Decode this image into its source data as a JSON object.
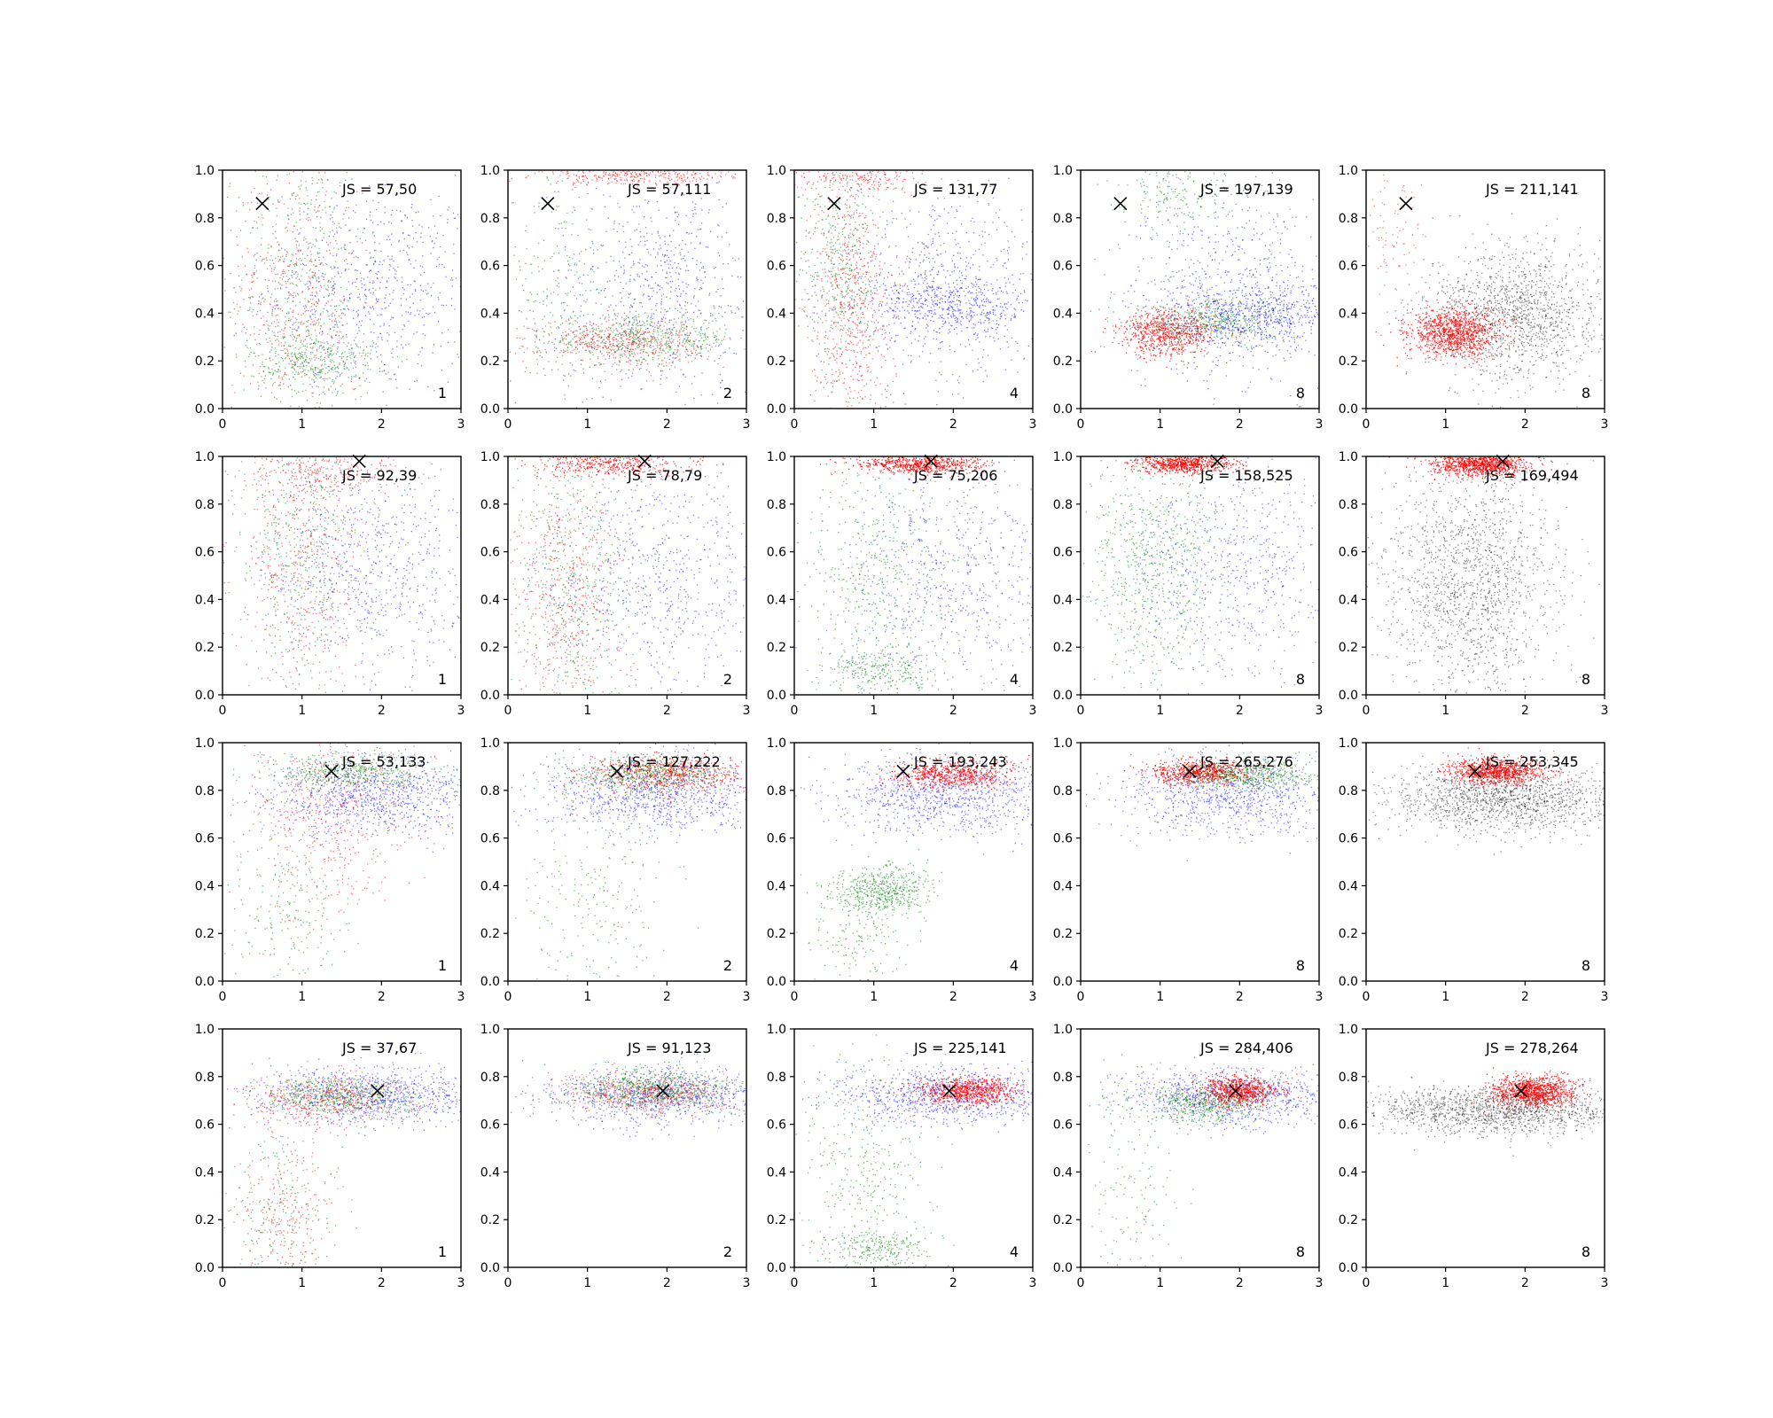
{
  "colors": {
    "background": "#ffffff",
    "series_a": "#0000ff",
    "series_b": "#008000",
    "series_c": "#ff0000",
    "series_other": "#000000",
    "marker": "#000000"
  },
  "chart_data": {
    "type": "scatter",
    "layout": "grid of small multiples, 4 rows x 5 columns",
    "xlim": [
      0,
      3
    ],
    "ylim": [
      0,
      1
    ],
    "xticks": [
      "0",
      "1",
      "2",
      "3"
    ],
    "yticks": [
      "0.0",
      "0.2",
      "0.4",
      "0.6",
      "0.8",
      "1.0"
    ],
    "grid": false,
    "marker_symbol": "x",
    "panels": [
      {
        "row": 1,
        "col": 1,
        "js_text": "JS = 57,50",
        "step": "1",
        "marker": [
          0.5,
          0.86
        ],
        "colors": [
          "blue",
          "green",
          "red"
        ]
      },
      {
        "row": 1,
        "col": 2,
        "js_text": "JS = 57,111",
        "step": "2",
        "marker": [
          0.5,
          0.86
        ],
        "colors": [
          "blue",
          "green",
          "red"
        ]
      },
      {
        "row": 1,
        "col": 3,
        "js_text": "JS = 131,77",
        "step": "4",
        "marker": [
          0.5,
          0.86
        ],
        "colors": [
          "blue",
          "green",
          "red"
        ]
      },
      {
        "row": 1,
        "col": 4,
        "js_text": "JS = 197,139",
        "step": "8",
        "marker": [
          0.5,
          0.86
        ],
        "colors": [
          "blue",
          "green",
          "red"
        ]
      },
      {
        "row": 1,
        "col": 5,
        "js_text": "JS = 211,141",
        "step": "8",
        "marker": [
          0.5,
          0.86
        ],
        "colors": [
          "black",
          "red"
        ]
      },
      {
        "row": 2,
        "col": 1,
        "js_text": "JS = 92,39",
        "step": "1",
        "marker": [
          1.72,
          0.98
        ],
        "colors": [
          "blue",
          "green",
          "red"
        ]
      },
      {
        "row": 2,
        "col": 2,
        "js_text": "JS = 78,79",
        "step": "2",
        "marker": [
          1.72,
          0.98
        ],
        "colors": [
          "blue",
          "green",
          "red"
        ]
      },
      {
        "row": 2,
        "col": 3,
        "js_text": "JS = 75,206",
        "step": "4",
        "marker": [
          1.72,
          0.98
        ],
        "colors": [
          "blue",
          "green",
          "red"
        ]
      },
      {
        "row": 2,
        "col": 4,
        "js_text": "JS = 158,525",
        "step": "8",
        "marker": [
          1.72,
          0.98
        ],
        "colors": [
          "blue",
          "green",
          "red"
        ]
      },
      {
        "row": 2,
        "col": 5,
        "js_text": "JS = 169,494",
        "step": "8",
        "marker": [
          1.72,
          0.98
        ],
        "colors": [
          "black",
          "red"
        ]
      },
      {
        "row": 3,
        "col": 1,
        "js_text": "JS = 53,133",
        "step": "1",
        "marker": [
          1.37,
          0.88
        ],
        "colors": [
          "blue",
          "green",
          "red"
        ]
      },
      {
        "row": 3,
        "col": 2,
        "js_text": "JS = 127,222",
        "step": "2",
        "marker": [
          1.37,
          0.88
        ],
        "colors": [
          "blue",
          "green",
          "red"
        ]
      },
      {
        "row": 3,
        "col": 3,
        "js_text": "JS = 193,243",
        "step": "4",
        "marker": [
          1.37,
          0.88
        ],
        "colors": [
          "blue",
          "green",
          "red"
        ]
      },
      {
        "row": 3,
        "col": 4,
        "js_text": "JS = 265,276",
        "step": "8",
        "marker": [
          1.37,
          0.88
        ],
        "colors": [
          "blue",
          "green",
          "red"
        ]
      },
      {
        "row": 3,
        "col": 5,
        "js_text": "JS = 253,345",
        "step": "8",
        "marker": [
          1.37,
          0.88
        ],
        "colors": [
          "black",
          "red"
        ]
      },
      {
        "row": 4,
        "col": 1,
        "js_text": "JS = 37,67",
        "step": "1",
        "marker": [
          1.95,
          0.74
        ],
        "colors": [
          "blue",
          "green",
          "red"
        ]
      },
      {
        "row": 4,
        "col": 2,
        "js_text": "JS = 91,123",
        "step": "2",
        "marker": [
          1.95,
          0.74
        ],
        "colors": [
          "blue",
          "green",
          "red"
        ]
      },
      {
        "row": 4,
        "col": 3,
        "js_text": "JS = 225,141",
        "step": "4",
        "marker": [
          1.95,
          0.74
        ],
        "colors": [
          "blue",
          "green",
          "red"
        ]
      },
      {
        "row": 4,
        "col": 4,
        "js_text": "JS = 284,406",
        "step": "8",
        "marker": [
          1.95,
          0.74
        ],
        "colors": [
          "blue",
          "green",
          "red"
        ]
      },
      {
        "row": 4,
        "col": 5,
        "js_text": "JS = 278,264",
        "step": "8",
        "marker": [
          1.95,
          0.74
        ],
        "colors": [
          "black",
          "red"
        ]
      }
    ]
  }
}
